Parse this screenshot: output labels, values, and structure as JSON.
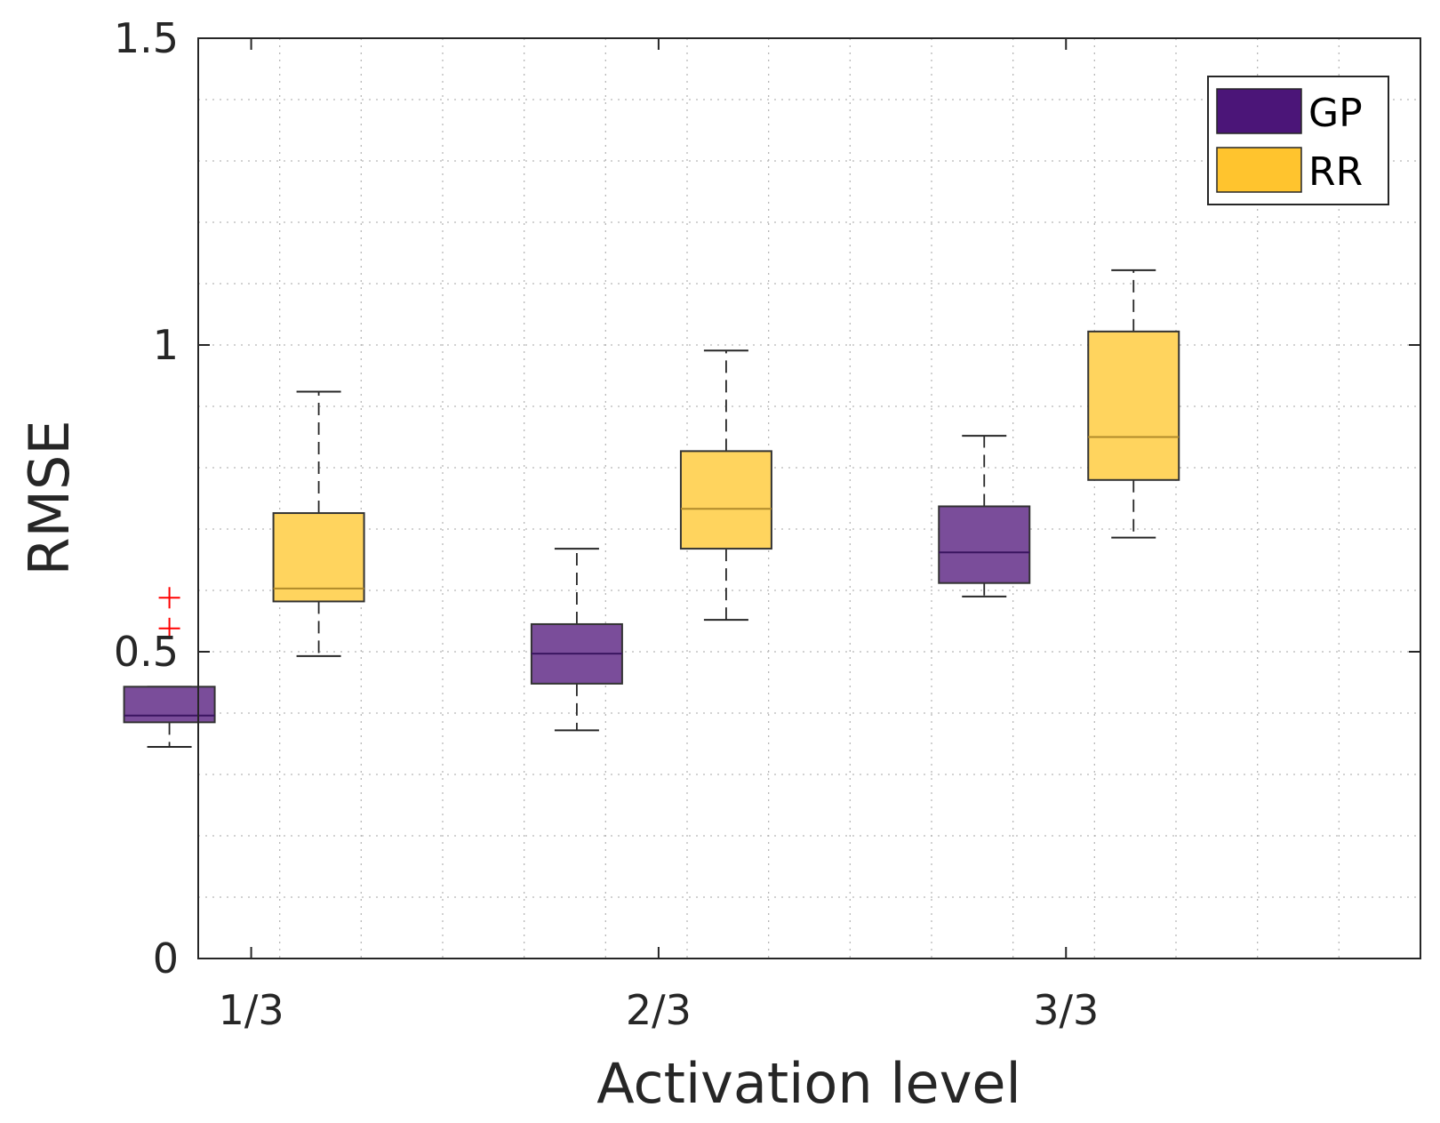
{
  "chart_data": {
    "type": "boxplot",
    "title": "",
    "xlabel": "Activation level",
    "ylabel": "RMSE",
    "ylim": [
      0,
      1.5
    ],
    "yticks": [
      0,
      0.5,
      1,
      1.5
    ],
    "ytick_labels": [
      "0",
      "0.5",
      "1",
      "1.5"
    ],
    "grid": true,
    "legend_position": "top-right",
    "categories": [
      "1/3",
      "2/3",
      "3/3"
    ],
    "series": [
      {
        "name": "GP",
        "color": "#4b1578",
        "fill": "#7a4d9a",
        "boxes": [
          {
            "category": "1/3",
            "whisker_low": 0.345,
            "q1": 0.385,
            "median": 0.396,
            "q3": 0.443,
            "whisker_high": 0.443,
            "outliers": [
              0.538,
              0.588
            ]
          },
          {
            "category": "2/3",
            "whisker_low": 0.372,
            "q1": 0.448,
            "median": 0.497,
            "q3": 0.545,
            "whisker_high": 0.668,
            "outliers": []
          },
          {
            "category": "3/3",
            "whisker_low": 0.59,
            "q1": 0.612,
            "median": 0.662,
            "q3": 0.737,
            "whisker_high": 0.852,
            "outliers": []
          }
        ]
      },
      {
        "name": "RR",
        "color": "#ffc42e",
        "fill": "#ffd45e",
        "boxes": [
          {
            "category": "1/3",
            "whisker_low": 0.493,
            "q1": 0.582,
            "median": 0.603,
            "q3": 0.726,
            "whisker_high": 0.924,
            "outliers": []
          },
          {
            "category": "2/3",
            "whisker_low": 0.552,
            "q1": 0.668,
            "median": 0.733,
            "q3": 0.827,
            "whisker_high": 0.991,
            "outliers": []
          },
          {
            "category": "3/3",
            "whisker_low": 0.686,
            "q1": 0.78,
            "median": 0.85,
            "q3": 1.022,
            "whisker_high": 1.122,
            "outliers": []
          }
        ]
      }
    ]
  }
}
